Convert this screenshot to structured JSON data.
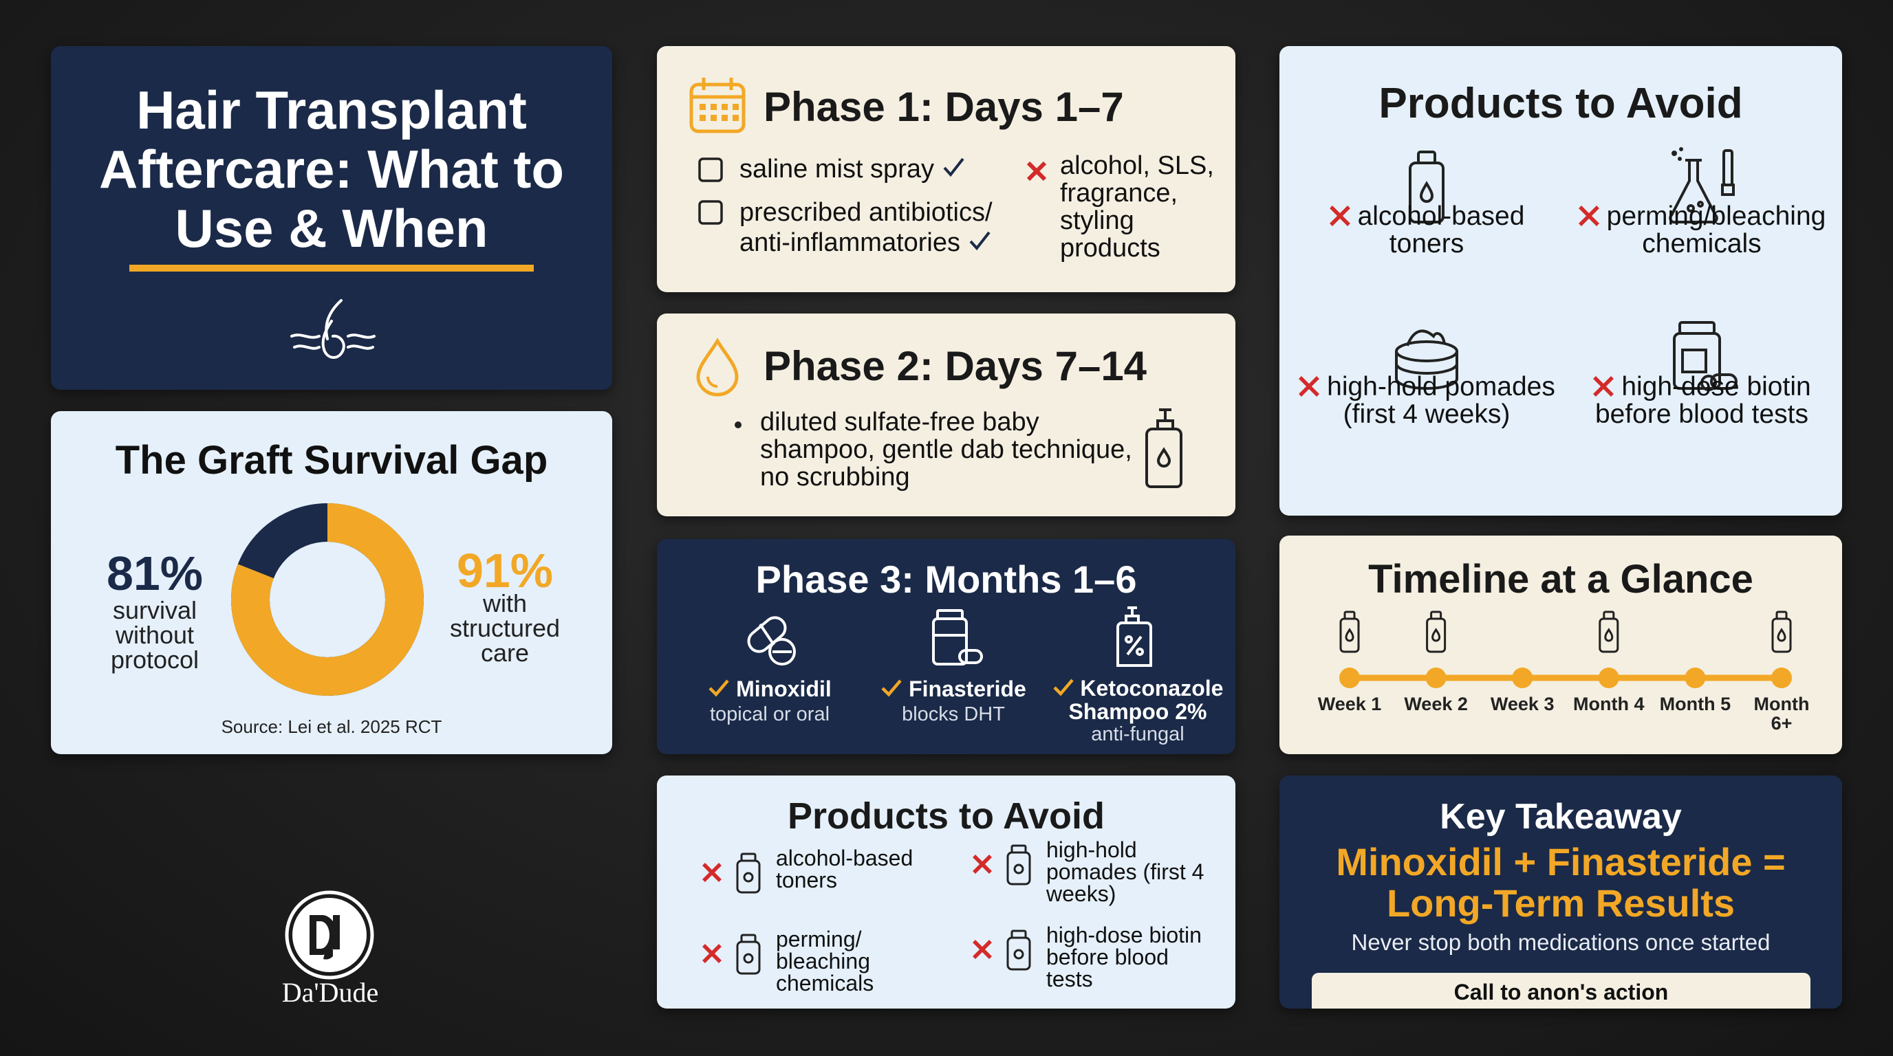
{
  "header": {
    "title": "Hair Transplant Aftercare: What to Use & When"
  },
  "graft_gap": {
    "title": "The Graft Survival Gap",
    "without": {
      "value": 81,
      "label": "81%",
      "caption": "survival without protocol"
    },
    "with": {
      "value": 91,
      "label": "91%",
      "caption": "with structured care"
    },
    "source": "Source: Lei et al. 2025 RCT"
  },
  "brand": {
    "name": "Da'Dude"
  },
  "phase1": {
    "title": "Phase 1: Days 1–7",
    "use": [
      "saline mist spray",
      "prescribed antibiotics/ anti-inflammatories"
    ],
    "avoid": "alcohol, SLS, fragrance, styling products"
  },
  "phase2": {
    "title": "Phase 2: Days 7–14",
    "items": [
      "diluted sulfate-free baby shampoo, gentle dab technique, no scrubbing"
    ]
  },
  "phase3": {
    "title": "Phase 3: Months 1–6",
    "items": [
      {
        "name": "Minoxidil",
        "note": "topical or oral"
      },
      {
        "name": "Finasteride",
        "note": "blocks DHT"
      },
      {
        "name": "Ketoconazole Shampoo 2%",
        "note": "anti-fungal"
      }
    ]
  },
  "avoid_compact": {
    "title": "Products to Avoid",
    "items": [
      "alcohol-based toners",
      "high-hold pomades (first 4 weeks)",
      "perming/ bleaching chemicals",
      "high-dose biotin before blood tests"
    ]
  },
  "avoid_main": {
    "title": "Products to Avoid",
    "items": [
      "alcohol-based toners",
      "perming/bleaching chemicals",
      "high-hold pomades (first 4 weeks)",
      "high-dose biotin before blood tests"
    ]
  },
  "timeline": {
    "title": "Timeline at a Glance",
    "steps": [
      "Week 1",
      "Week 2",
      "Week 3",
      "Month 4",
      "Month 5",
      "Month 6+"
    ]
  },
  "takeaway": {
    "title": "Key Takeaway",
    "headline": "Minoxidil + Finasteride = Long-Term Results",
    "note": "Never stop both medications once started",
    "cta": "Call to anon's action"
  }
}
